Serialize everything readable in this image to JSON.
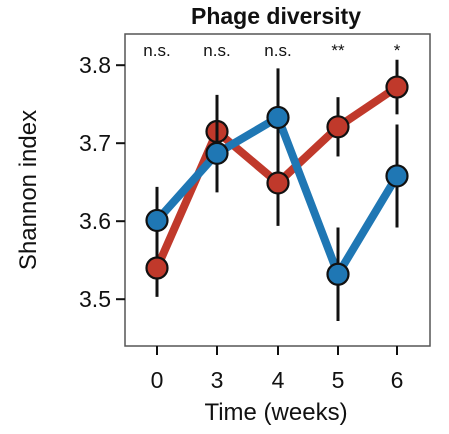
{
  "chart_data": {
    "type": "line",
    "title": "Phage diversity",
    "xlabel": "Time (weeks)",
    "ylabel": "Shannon index",
    "categories": [
      "0",
      "3",
      "4",
      "5",
      "6"
    ],
    "yticks": [
      "3.5",
      "3.6",
      "3.7",
      "3.8"
    ],
    "ylim": [
      3.44,
      3.84
    ],
    "significance": [
      "n.s.",
      "n.s.",
      "n.s.",
      "**",
      "*"
    ],
    "series": [
      {
        "color": "#c0392b",
        "values": [
          3.54,
          3.715,
          3.649,
          3.721,
          3.772
        ],
        "errors": [
          0.037,
          0.047,
          0.055,
          0.038,
          0.035
        ]
      },
      {
        "color": "#1f77b4",
        "values": [
          3.601,
          3.687,
          3.733,
          3.532,
          3.658
        ],
        "errors": [
          0.043,
          0.05,
          0.063,
          0.06,
          0.066
        ]
      }
    ],
    "grid": false,
    "legend": "none"
  }
}
